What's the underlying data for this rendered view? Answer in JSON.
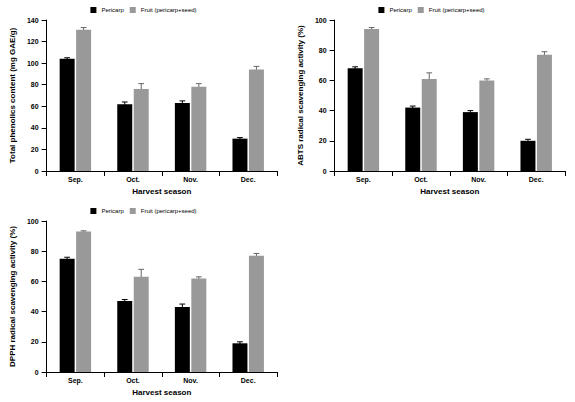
{
  "chart_data": [
    {
      "type": "bar",
      "y_label": "Total phenolics content (mg GAE/g)",
      "x_label": "Harvest season",
      "categories": [
        "Sep.",
        "Oct.",
        "Nov.",
        "Dec."
      ],
      "series": [
        {
          "name": "Pericarp",
          "color": "#000000",
          "values": [
            104,
            62,
            63,
            30
          ],
          "errors": [
            1,
            2,
            2,
            1
          ]
        },
        {
          "name": "Fruit (pericarp+seed)",
          "color": "#999999",
          "values": [
            131,
            76,
            78,
            94
          ],
          "errors": [
            2,
            5,
            3,
            3
          ]
        }
      ],
      "ylim": [
        0,
        140
      ],
      "yticks": [
        0,
        20,
        40,
        60,
        80,
        100,
        120,
        140
      ],
      "grid": false,
      "legend": "top"
    },
    {
      "type": "bar",
      "y_label": "ABTS radical scavenging activity (%)",
      "x_label": "Harvest season",
      "categories": [
        "Sep.",
        "Oct.",
        "Nov.",
        "Dec."
      ],
      "series": [
        {
          "name": "Pericarp",
          "color": "#000000",
          "values": [
            68,
            42,
            39,
            20
          ],
          "errors": [
            1,
            1,
            1,
            1
          ]
        },
        {
          "name": "Fruit (pericarp+seed)",
          "color": "#999999",
          "values": [
            94,
            61,
            60,
            77
          ],
          "errors": [
            1,
            4,
            1,
            2
          ]
        }
      ],
      "ylim": [
        0,
        100
      ],
      "yticks": [
        0,
        20,
        40,
        60,
        80,
        100
      ],
      "grid": false,
      "legend": "top"
    },
    {
      "type": "bar",
      "y_label": "DPPH radical scavenging activity (%)",
      "x_label": "Harvest season",
      "categories": [
        "Sep.",
        "Oct.",
        "Nov.",
        "Dec."
      ],
      "series": [
        {
          "name": "Pericarp",
          "color": "#000000",
          "values": [
            75,
            47,
            43,
            19
          ],
          "errors": [
            1,
            1,
            2,
            1
          ]
        },
        {
          "name": "Fruit (pericarp+seed)",
          "color": "#999999",
          "values": [
            93,
            63,
            62,
            77
          ],
          "errors": [
            0.5,
            5,
            1,
            1.5
          ]
        }
      ],
      "ylim": [
        0,
        100
      ],
      "yticks": [
        0,
        20,
        40,
        60,
        80,
        100
      ],
      "grid": false,
      "legend": "top"
    }
  ]
}
